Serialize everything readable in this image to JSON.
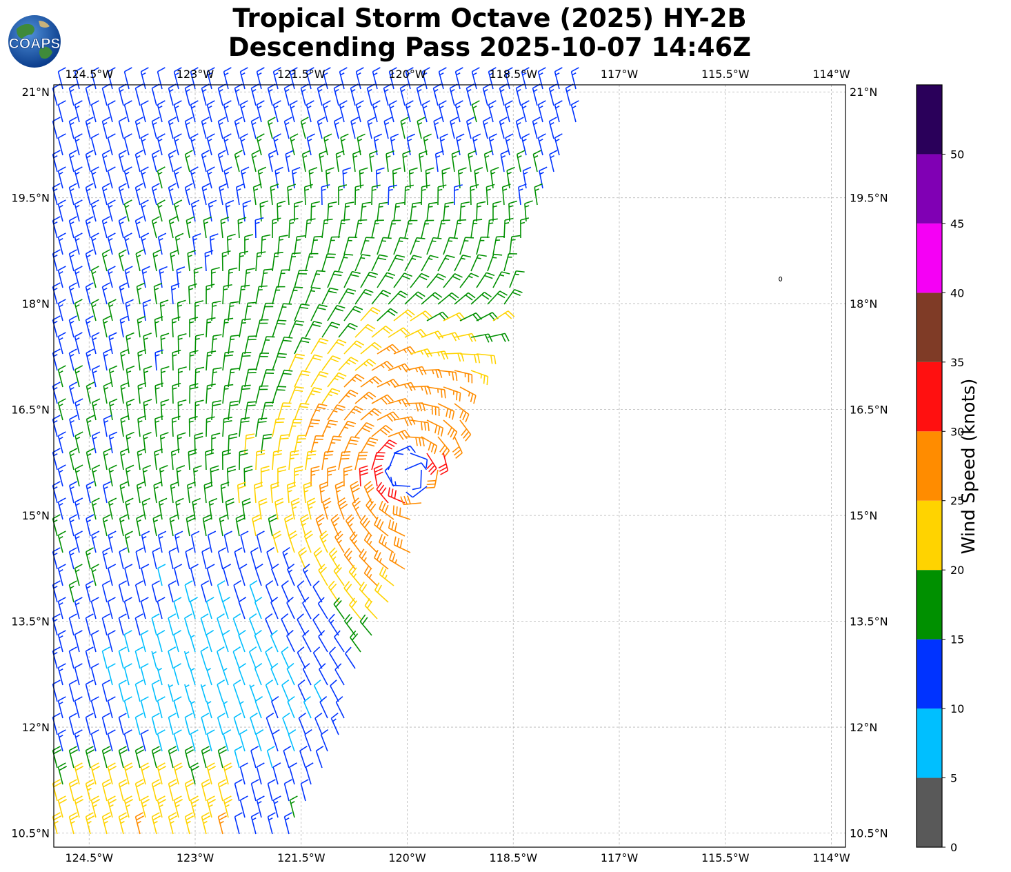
{
  "header": {
    "title_line1": "Tropical Storm Octave (2025) HY-2B",
    "title_line2": "Descending Pass 2025-10-07 14:46Z",
    "logo_text": "COAPS"
  },
  "map": {
    "lon_ticks": [
      "124.5°W",
      "123°W",
      "121.5°W",
      "120°W",
      "118.5°W",
      "117°W",
      "115.5°W",
      "114°W"
    ],
    "lat_ticks": [
      "21°N",
      "19.5°N",
      "18°N",
      "16.5°N",
      "15°N",
      "13.5°N",
      "12°N",
      "10.5°N"
    ],
    "lon_range": [
      -125.0,
      -113.8
    ],
    "lat_range": [
      10.3,
      21.1
    ],
    "gridlines": true,
    "storm_center": {
      "lon": -120.0,
      "lat": 15.6
    },
    "island_marker": {
      "lon": -114.72,
      "lat": 18.35
    }
  },
  "colorbar": {
    "label": "Wind Speed (knots)",
    "tick_labels": [
      "0",
      "5",
      "10",
      "15",
      "20",
      "25",
      "30",
      "35",
      "40",
      "45",
      "50"
    ],
    "bins": [
      {
        "from": 0,
        "to": 5,
        "color": "#595959"
      },
      {
        "from": 5,
        "to": 10,
        "color": "#00bfff"
      },
      {
        "from": 10,
        "to": 15,
        "color": "#0033ff"
      },
      {
        "from": 15,
        "to": 20,
        "color": "#009000"
      },
      {
        "from": 20,
        "to": 25,
        "color": "#ffd300"
      },
      {
        "from": 25,
        "to": 30,
        "color": "#ff8c00"
      },
      {
        "from": 30,
        "to": 35,
        "color": "#ff1010"
      },
      {
        "from": 35,
        "to": 40,
        "color": "#7f3b26"
      },
      {
        "from": 40,
        "to": 45,
        "color": "#f500f5"
      },
      {
        "from": 45,
        "to": 50,
        "color": "#8000b4"
      },
      {
        "from": 50,
        "to": 55,
        "color": "#2a005a"
      }
    ]
  }
}
